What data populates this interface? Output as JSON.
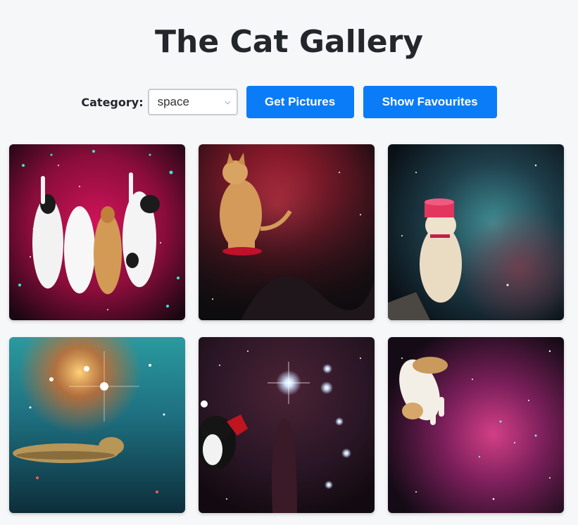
{
  "header": {
    "title": "The Cat Gallery"
  },
  "controls": {
    "category_label": "Category:",
    "category_value": "space",
    "get_button": "Get Pictures",
    "favourites_button": "Show Favourites"
  },
  "colors": {
    "primary_button": "#0a7cf8",
    "background": "#f6f7f9"
  },
  "gallery": {
    "images": [
      {
        "description": "four cats stretching up in pink space"
      },
      {
        "description": "orange cat sitting in red nebula"
      },
      {
        "description": "cream cat wearing pink bucket in teal nebula"
      },
      {
        "description": "tabby cat floating in colorful starfield"
      },
      {
        "description": "black and white cat flying past bright stars"
      },
      {
        "description": "white and orange cat falling through pink nebula"
      }
    ]
  }
}
